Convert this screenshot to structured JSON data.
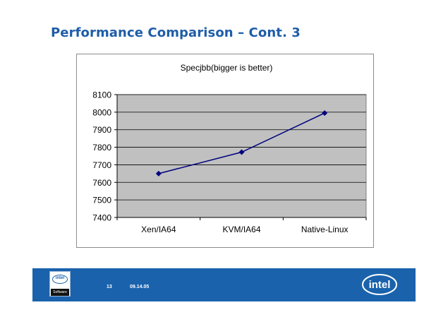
{
  "slide": {
    "title": "Performance Comparison – Cont. 3"
  },
  "chart_data": {
    "type": "line",
    "title": "Specjbb(bigger is better)",
    "xlabel": "",
    "ylabel": "",
    "categories": [
      "Xen/IA64",
      "KVM/IA64",
      "Native-Linux"
    ],
    "series": [
      {
        "values": [
          7650,
          7772,
          7995
        ]
      }
    ],
    "ylim": [
      7400,
      8100
    ],
    "yticks": [
      7400,
      7500,
      7600,
      7700,
      7800,
      7900,
      8000,
      8100
    ],
    "grid": true,
    "legend": "none",
    "colors": {
      "line": "#000080",
      "plot_bg": "#c0c0c0",
      "grid": "#000000"
    }
  },
  "footer": {
    "page_number": "13",
    "date": "09.14.05",
    "left_logo": {
      "icon": "intel-software-logo",
      "word": "intel",
      "caption": "Software"
    },
    "right_logo": {
      "icon": "intel-logo",
      "word": "intel"
    },
    "bar_color": "#1a62ac"
  }
}
